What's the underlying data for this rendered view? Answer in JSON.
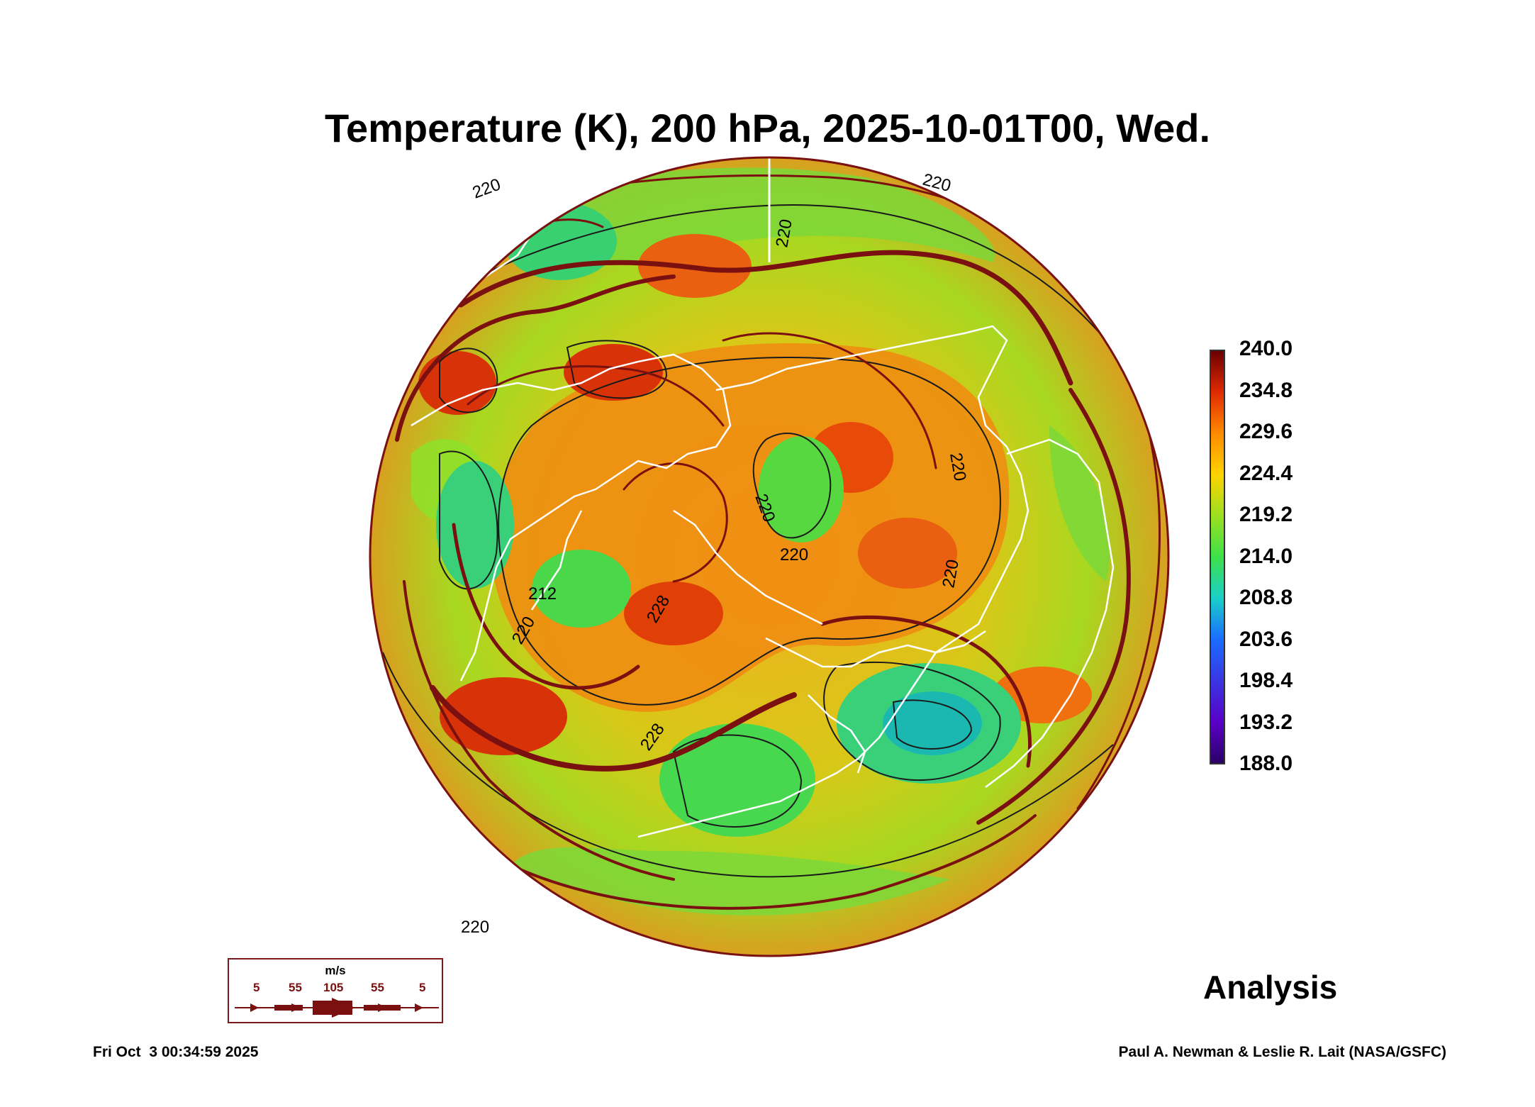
{
  "title": "Temperature (K), 200 hPa, 2025-10-01T00, Wed.",
  "colorbar": {
    "labels": [
      "240.0",
      "234.8",
      "229.6",
      "224.4",
      "219.2",
      "214.0",
      "208.8",
      "203.6",
      "198.4",
      "193.2",
      "188.0"
    ],
    "min": 188.0,
    "max": 240.0
  },
  "contour_labels": [
    "220",
    "220",
    "220",
    "220",
    "220",
    "220",
    "220",
    "220",
    "228",
    "228",
    "212",
    "220"
  ],
  "wind_legend": {
    "unit": "m/s",
    "speeds": [
      "5",
      "55",
      "105",
      "55",
      "5"
    ]
  },
  "analysis_label": "Analysis",
  "footer": {
    "timestamp": "Fri Oct  3 00:34:59 2025",
    "credit": "Paul A. Newman & Leslie R. Lait (NASA/GSFC)"
  },
  "colors": {
    "jet": "#7a1010",
    "coast": "#ffffff",
    "contour": "#1a1a1a"
  }
}
